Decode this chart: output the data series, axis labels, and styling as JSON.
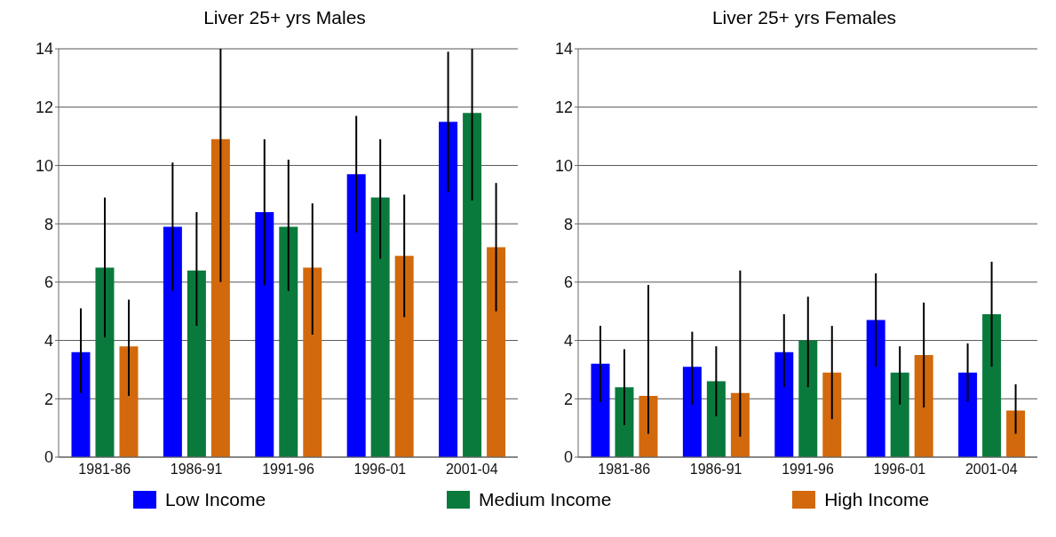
{
  "chart_data": [
    {
      "type": "bar",
      "title": "Liver   25+ yrs   Males",
      "categories": [
        "1981-86",
        "1986-91",
        "1991-96",
        "1996-01",
        "2001-04"
      ],
      "series": [
        {
          "name": "Low Income",
          "color": "#0000ff",
          "values": [
            3.6,
            7.9,
            8.4,
            9.7,
            11.5
          ],
          "errors": [
            [
              2.2,
              5.1
            ],
            [
              5.7,
              10.1
            ],
            [
              5.9,
              10.9
            ],
            [
              7.7,
              11.7
            ],
            [
              9.1,
              13.9
            ]
          ]
        },
        {
          "name": "Medium Income",
          "color": "#0a7a3c",
          "values": [
            6.5,
            6.4,
            7.9,
            8.9,
            11.8
          ],
          "errors": [
            [
              4.1,
              8.9
            ],
            [
              4.5,
              8.4
            ],
            [
              5.7,
              10.2
            ],
            [
              6.8,
              10.9
            ],
            [
              8.8,
              14.0
            ]
          ]
        },
        {
          "name": "High Income",
          "color": "#d2690c",
          "values": [
            3.8,
            10.9,
            6.5,
            6.9,
            7.2
          ],
          "errors": [
            [
              2.1,
              5.4
            ],
            [
              6.0,
              14.0
            ],
            [
              4.2,
              8.7
            ],
            [
              4.8,
              9.0
            ],
            [
              5.0,
              9.4
            ]
          ]
        }
      ],
      "ylim": [
        0,
        14
      ],
      "yticks": [
        0,
        2,
        4,
        6,
        8,
        10,
        12,
        14
      ],
      "grid": "y",
      "legend": "bottom"
    },
    {
      "type": "bar",
      "title": "Liver   25+ yrs   Females",
      "categories": [
        "1981-86",
        "1986-91",
        "1991-96",
        "1996-01",
        "2001-04"
      ],
      "series": [
        {
          "color": "#0000ff",
          "values": [
            3.2,
            3.1,
            3.6,
            4.7,
            2.9
          ],
          "errors": [
            [
              1.9,
              4.5
            ],
            [
              1.8,
              4.3
            ],
            [
              2.4,
              4.9
            ],
            [
              3.1,
              6.3
            ],
            [
              1.9,
              3.9
            ]
          ]
        },
        {
          "color": "#0a7a3c",
          "values": [
            2.4,
            2.6,
            4.0,
            2.9,
            4.9
          ],
          "errors": [
            [
              1.1,
              3.7
            ],
            [
              1.4,
              3.8
            ],
            [
              2.4,
              5.5
            ],
            [
              1.8,
              3.8
            ],
            [
              3.1,
              6.7
            ]
          ]
        },
        {
          "color": "#d2690c",
          "values": [
            2.1,
            2.2,
            2.9,
            3.5,
            1.6
          ],
          "errors": [
            [
              0.8,
              5.9
            ],
            [
              0.7,
              6.4
            ],
            [
              1.3,
              4.5
            ],
            [
              1.7,
              5.3
            ],
            [
              0.8,
              2.5
            ]
          ]
        }
      ],
      "ylim": [
        0,
        14
      ],
      "yticks": [
        0,
        2,
        4,
        6,
        8,
        10,
        12,
        14
      ],
      "grid": "y"
    }
  ]
}
